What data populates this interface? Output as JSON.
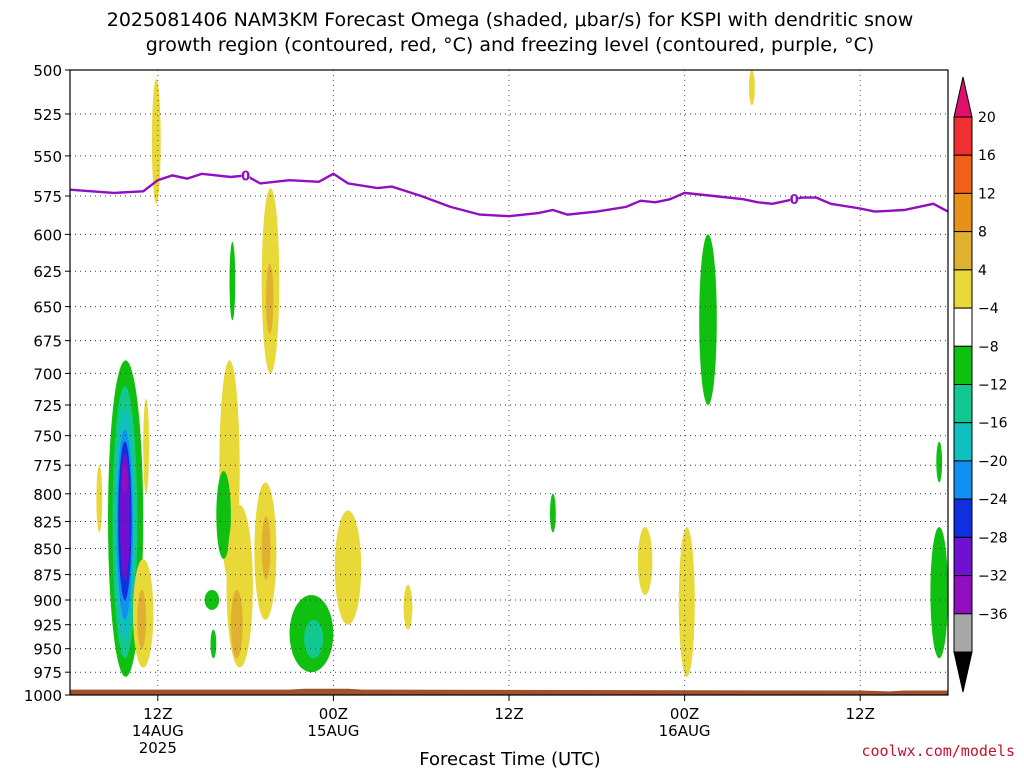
{
  "chart_data": {
    "type": "heatmap",
    "title_line1": "2025081406 NAM3KM Forecast Omega (shaded, μbar/s) for KSPI with dendritic snow",
    "title_line2": "growth region (contoured, red, °C) and freezing level (contoured, purple, °C)",
    "xlabel": "Forecast Time (UTC)",
    "credit": "coolwx.com/models",
    "y_axis": {
      "label": "",
      "scale": "log-pressure",
      "ticks": [
        "500",
        "525",
        "550",
        "575",
        "600",
        "625",
        "650",
        "675",
        "700",
        "725",
        "750",
        "775",
        "800",
        "825",
        "850",
        "875",
        "900",
        "925",
        "950",
        "975",
        "1000"
      ],
      "range": [
        1000,
        500
      ]
    },
    "x_axis": {
      "range_hours": [
        0,
        60
      ],
      "ticks": [
        {
          "label": "12Z",
          "sub1": "14AUG",
          "sub2": "2025"
        },
        {
          "label": "00Z",
          "sub1": "15AUG",
          "sub2": ""
        },
        {
          "label": "12Z",
          "sub1": "",
          "sub2": ""
        },
        {
          "label": "00Z",
          "sub1": "16AUG",
          "sub2": ""
        },
        {
          "label": "12Z",
          "sub1": "",
          "sub2": ""
        }
      ],
      "tick_hours": [
        6,
        18,
        30,
        42,
        54
      ]
    },
    "grid": true,
    "colorbar": {
      "labels": [
        "20",
        "16",
        "12",
        "8",
        "4",
        "−4",
        "−8",
        "−12",
        "−16",
        "−20",
        "−24",
        "−28",
        "−32",
        "−36"
      ],
      "colors": [
        "#e0106e",
        "#f03030",
        "#f06018",
        "#e89018",
        "#e0b030",
        "#e8d838",
        "#ffffff",
        "#10c010",
        "#10c890",
        "#10c0c0",
        "#1090f0",
        "#1030e0",
        "#7010d0",
        "#9010c0",
        "#a8a8a8",
        "#000000"
      ]
    },
    "freezing_level": {
      "label": "0",
      "points": [
        [
          0,
          571
        ],
        [
          3,
          573
        ],
        [
          5,
          572
        ],
        [
          6,
          565
        ],
        [
          7,
          562
        ],
        [
          8,
          564
        ],
        [
          9,
          561
        ],
        [
          11,
          563
        ],
        [
          12,
          562
        ],
        [
          13,
          567
        ],
        [
          15,
          565
        ],
        [
          17,
          566
        ],
        [
          18,
          561
        ],
        [
          19,
          567
        ],
        [
          21,
          570
        ],
        [
          22,
          569
        ],
        [
          24,
          575
        ],
        [
          26,
          582
        ],
        [
          28,
          587
        ],
        [
          30,
          588
        ],
        [
          32,
          586
        ],
        [
          33,
          584
        ],
        [
          34,
          587
        ],
        [
          36,
          585
        ],
        [
          38,
          582
        ],
        [
          39,
          578
        ],
        [
          40,
          579
        ],
        [
          41,
          577
        ],
        [
          42,
          573
        ],
        [
          44,
          575
        ],
        [
          46,
          577
        ],
        [
          47,
          579
        ],
        [
          48,
          580
        ],
        [
          49,
          578
        ],
        [
          50,
          576
        ],
        [
          51,
          576
        ],
        [
          52,
          580
        ],
        [
          54,
          583
        ],
        [
          55,
          585
        ],
        [
          57,
          584
        ],
        [
          59,
          580
        ],
        [
          60,
          585
        ]
      ],
      "label_hours": [
        12,
        49.5
      ]
    },
    "omega_regions": [
      {
        "value": -8,
        "t0": 2.6,
        "t1": 5.0,
        "p0": 690,
        "p1": 980
      },
      {
        "value": -12,
        "t0": 2.9,
        "t1": 4.6,
        "p0": 710,
        "p1": 960
      },
      {
        "value": -16,
        "t0": 3.1,
        "t1": 4.4,
        "p0": 730,
        "p1": 940
      },
      {
        "value": -20,
        "t0": 3.2,
        "t1": 4.3,
        "p0": 745,
        "p1": 920
      },
      {
        "value": -24,
        "t0": 3.3,
        "t1": 4.2,
        "p0": 755,
        "p1": 900
      },
      {
        "value": -28,
        "t0": 3.4,
        "t1": 4.1,
        "p0": 765,
        "p1": 880
      },
      {
        "value": -32,
        "t0": 3.55,
        "t1": 3.95,
        "p0": 775,
        "p1": 800
      },
      {
        "value": 4,
        "t0": 1.8,
        "t1": 2.2,
        "p0": 775,
        "p1": 835
      },
      {
        "value": 4,
        "t0": 5.0,
        "t1": 5.4,
        "p0": 720,
        "p1": 800
      },
      {
        "value": 4,
        "t0": 4.3,
        "t1": 5.7,
        "p0": 860,
        "p1": 970
      },
      {
        "value": 8,
        "t0": 4.6,
        "t1": 5.2,
        "p0": 890,
        "p1": 950
      },
      {
        "value": 4,
        "t0": 5.6,
        "t1": 6.2,
        "p0": 505,
        "p1": 580
      },
      {
        "value": -8,
        "t0": 10.9,
        "t1": 11.3,
        "p0": 605,
        "p1": 660
      },
      {
        "value": 4,
        "t0": 13.1,
        "t1": 14.3,
        "p0": 570,
        "p1": 700
      },
      {
        "value": 8,
        "t0": 13.4,
        "t1": 13.9,
        "p0": 620,
        "p1": 670
      },
      {
        "value": 4,
        "t0": 10.2,
        "t1": 11.6,
        "p0": 690,
        "p1": 880
      },
      {
        "value": -8,
        "t0": 10.0,
        "t1": 11.0,
        "p0": 780,
        "p1": 860
      },
      {
        "value": 4,
        "t0": 10.7,
        "t1": 12.5,
        "p0": 810,
        "p1": 970
      },
      {
        "value": 8,
        "t0": 11.0,
        "t1": 11.8,
        "p0": 890,
        "p1": 960
      },
      {
        "value": 4,
        "t0": 12.6,
        "t1": 14.1,
        "p0": 790,
        "p1": 920
      },
      {
        "value": 8,
        "t0": 13.1,
        "t1": 13.7,
        "p0": 820,
        "p1": 880
      },
      {
        "value": -8,
        "t0": 9.2,
        "t1": 10.2,
        "p0": 890,
        "p1": 910
      },
      {
        "value": -8,
        "t0": 9.6,
        "t1": 10.0,
        "p0": 930,
        "p1": 960
      },
      {
        "value": -8,
        "t0": 15.0,
        "t1": 18.0,
        "p0": 895,
        "p1": 975
      },
      {
        "value": -12,
        "t0": 16.0,
        "t1": 17.3,
        "p0": 920,
        "p1": 960
      },
      {
        "value": 4,
        "t0": 18.1,
        "t1": 19.9,
        "p0": 815,
        "p1": 925
      },
      {
        "value": 4,
        "t0": 22.8,
        "t1": 23.4,
        "p0": 885,
        "p1": 930
      },
      {
        "value": -8,
        "t0": 32.8,
        "t1": 33.2,
        "p0": 800,
        "p1": 835
      },
      {
        "value": 4,
        "t0": 38.8,
        "t1": 39.8,
        "p0": 830,
        "p1": 895
      },
      {
        "value": 4,
        "t0": 41.6,
        "t1": 42.7,
        "p0": 830,
        "p1": 980
      },
      {
        "value": -8,
        "t0": 43.0,
        "t1": 44.2,
        "p0": 600,
        "p1": 725
      },
      {
        "value": 4,
        "t0": 46.4,
        "t1": 46.8,
        "p0": 500,
        "p1": 520
      },
      {
        "value": -8,
        "t0": 59.2,
        "t1": 59.6,
        "p0": 755,
        "p1": 790
      },
      {
        "value": -8,
        "t0": 58.8,
        "t1": 60.0,
        "p0": 830,
        "p1": 960
      }
    ],
    "terrain_surface_pressure": [
      [
        0,
        994
      ],
      [
        15,
        994
      ],
      [
        16,
        993
      ],
      [
        19,
        993
      ],
      [
        20,
        994
      ],
      [
        54,
        995
      ],
      [
        56,
        996
      ],
      [
        57,
        995
      ],
      [
        60,
        995
      ]
    ]
  }
}
